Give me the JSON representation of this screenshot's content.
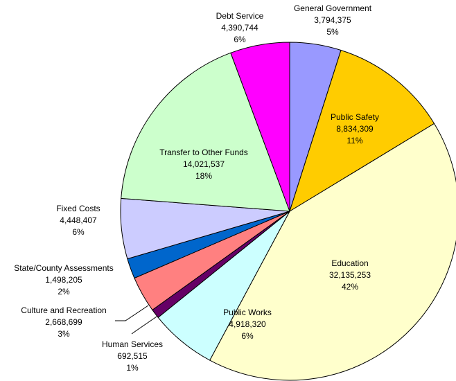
{
  "chart_data": {
    "type": "pie",
    "categories": [
      "General Government",
      "Public Safety",
      "Education",
      "Public Works",
      "Human Services",
      "Culture and Recreation",
      "State/County Assessments",
      "Fixed Costs",
      "Transfer to Other Funds",
      "Debt Service"
    ],
    "values": [
      3794375,
      8834309,
      32135253,
      4918320,
      692515,
      2668699,
      1498205,
      4448407,
      14021537,
      4390744
    ],
    "value_labels": [
      "3,794,375",
      "8,834,309",
      "32,135,253",
      "4,918,320",
      "692,515",
      "2,668,699",
      "1,498,205",
      "4,448,407",
      "14,021,537",
      "4,390,744"
    ],
    "percent_labels": [
      "5%",
      "11%",
      "42%",
      "6%",
      "1%",
      "3%",
      "2%",
      "6%",
      "18%",
      "6%"
    ],
    "colors": [
      "#9999ff",
      "#ffcc00",
      "#ffffcc",
      "#ccffff",
      "#660066",
      "#ff8080",
      "#0066cc",
      "#ccccff",
      "#ccffcc",
      "#ff00ff"
    ]
  }
}
